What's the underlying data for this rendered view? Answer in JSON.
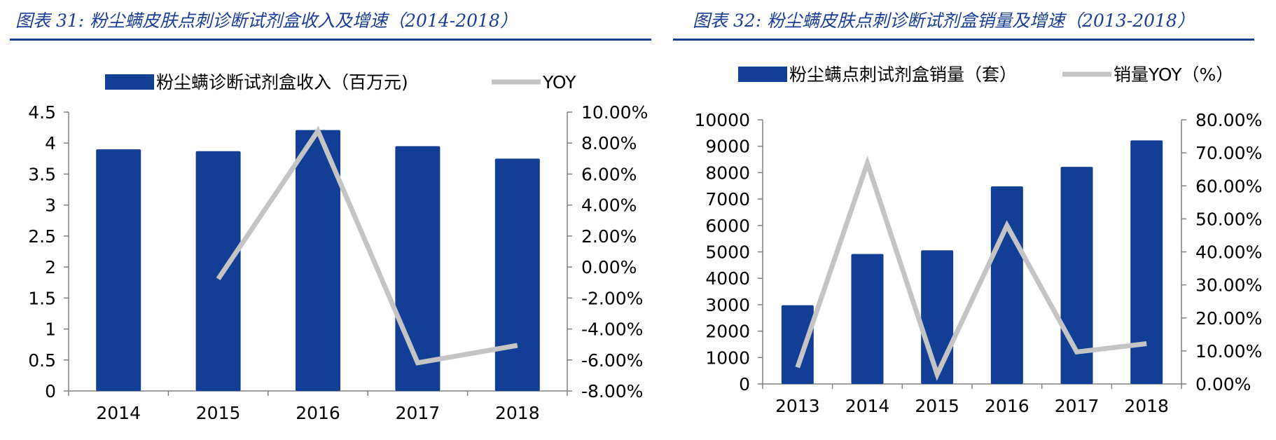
{
  "colors": {
    "bar": "#133e95",
    "line": "#c4c4c4",
    "title": "#1a3e96",
    "axis": "#808080"
  },
  "chart_data": [
    {
      "type": "bar",
      "title": "图表 31:  粉尘螨皮肤点刺诊断试剂盒收入及增速（2014-2018）",
      "categories": [
        "2014",
        "2015",
        "2016",
        "2017",
        "2018"
      ],
      "series": [
        {
          "name": "粉尘螨诊断试剂盒收入（百万元)",
          "type": "bar",
          "axis": "left",
          "values": [
            3.9,
            3.87,
            4.21,
            3.95,
            3.75
          ]
        },
        {
          "name": "YOY",
          "type": "line",
          "axis": "right",
          "values": [
            null,
            -0.77,
            8.79,
            -6.18,
            -5.06
          ]
        }
      ],
      "ylim_left": [
        0,
        4.5
      ],
      "ylim_right": [
        -8,
        10
      ],
      "yticks_left": [
        "4.5",
        "4",
        "3.5",
        "3",
        "2.5",
        "2",
        "1.5",
        "1",
        "0.5",
        "0"
      ],
      "yticks_right": [
        "10.00%",
        "8.00%",
        "6.00%",
        "4.00%",
        "2.00%",
        "0.00%",
        "-2.00%",
        "-4.00%",
        "-6.00%",
        "-8.00%"
      ],
      "legend": "top"
    },
    {
      "type": "bar",
      "title": "图表 32:  粉尘螨皮肤点刺诊断试剂盒销量及增速（2013-2018）",
      "categories": [
        "2013",
        "2014",
        "2015",
        "2016",
        "2017",
        "2018"
      ],
      "series": [
        {
          "name": "粉尘螨点刺试剂盒销量（套）",
          "type": "bar",
          "axis": "left",
          "values": [
            2980,
            4920,
            5060,
            7480,
            8220,
            9220
          ]
        },
        {
          "name": "销量YOY（%）",
          "type": "line",
          "axis": "right",
          "values": [
            5.0,
            66.9,
            2.9,
            48.0,
            9.7,
            12.2
          ]
        }
      ],
      "ylim_left": [
        0,
        10000
      ],
      "ylim_right": [
        0,
        80
      ],
      "yticks_left": [
        "10000",
        "9000",
        "8000",
        "7000",
        "6000",
        "5000",
        "4000",
        "3000",
        "2000",
        "1000",
        "0"
      ],
      "yticks_right": [
        "80.00%",
        "70.00%",
        "60.00%",
        "50.00%",
        "40.00%",
        "30.00%",
        "20.00%",
        "10.00%",
        "0.00%"
      ],
      "legend": "top"
    }
  ]
}
